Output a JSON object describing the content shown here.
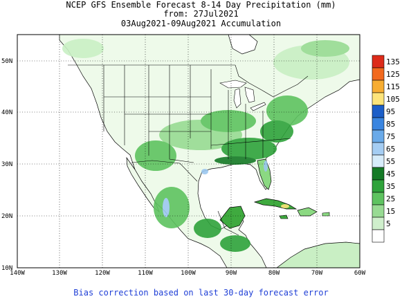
{
  "title": {
    "line1": "NCEP GFS Ensemble Forecast 8-14 Day Precipitation (mm)",
    "line2": "from: 27Jul2021",
    "line3": "03Aug2021-09Aug2021 Accumulation"
  },
  "map": {
    "lon_ticks": [
      "140W",
      "130W",
      "120W",
      "110W",
      "100W",
      "90W",
      "80W",
      "70W",
      "60W"
    ],
    "lat_ticks": [
      "10N",
      "20N",
      "30N",
      "40N",
      "50N"
    ],
    "colors": {
      "ocean": "#ffffff",
      "land_light": "#eefaea",
      "land_med": "#c9efc4",
      "land_green": "#8bd982",
      "land_dark": "#3faa3f",
      "land_darker": "#1e8c2a",
      "water_blue": "#9cc8f0",
      "border": "#000000"
    }
  },
  "colorbar": {
    "levels": [
      {
        "label": "135",
        "color": "#dd2b1a"
      },
      {
        "label": "125",
        "color": "#f26a1f"
      },
      {
        "label": "115",
        "color": "#f7ad32"
      },
      {
        "label": "105",
        "color": "#fde47a"
      },
      {
        "label": "95",
        "color": "#1c5ec8"
      },
      {
        "label": "85",
        "color": "#3a85e0"
      },
      {
        "label": "75",
        "color": "#6aaae9"
      },
      {
        "label": "65",
        "color": "#a5cdf3"
      },
      {
        "label": "55",
        "color": "#d7ecfa"
      },
      {
        "label": "45",
        "color": "#157a26"
      },
      {
        "label": "35",
        "color": "#2fa33b"
      },
      {
        "label": "25",
        "color": "#5ec360"
      },
      {
        "label": "15",
        "color": "#98db93"
      },
      {
        "label": "5",
        "color": "#cfefcc"
      },
      {
        "label": "",
        "color": "#ffffff"
      }
    ]
  },
  "footer": "Bias correction based on last 30-day forecast error"
}
